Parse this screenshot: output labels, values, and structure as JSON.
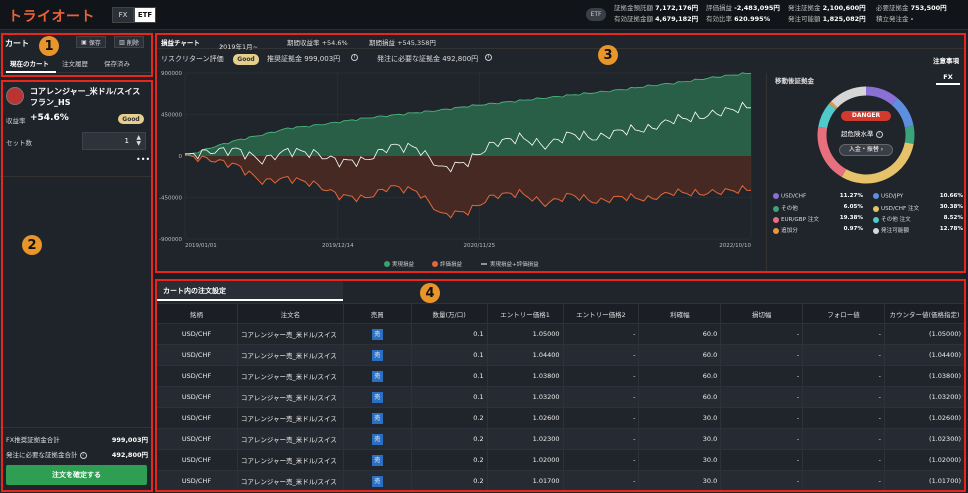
{
  "header": {
    "logo": "トライオート",
    "seg_fx": "FX",
    "seg_etf": "ETF",
    "badge": "ETF",
    "account": [
      {
        "label": "証拠金預託額",
        "value": "7,172,176円"
      },
      {
        "label": "評価損益",
        "value": "-2,483,095円"
      },
      {
        "label": "発注証拠金",
        "value": "2,100,600円"
      },
      {
        "label": "必要証拠金",
        "value": "753,500円"
      },
      {
        "label": "有効証拠金額",
        "value": "4,679,182円"
      },
      {
        "label": "有効比率",
        "value": "620.995%"
      },
      {
        "label": "発注可能額",
        "value": "1,825,082円"
      },
      {
        "label": "積立発注金",
        "value": "-"
      }
    ]
  },
  "left": {
    "title": "カート",
    "save": "保存",
    "delete": "削除",
    "tabs": [
      "現在のカート",
      "注文履歴",
      "保存済み"
    ],
    "strategy_name": "コアレンジャー_米ドル/スイスフラン_HS",
    "return_label": "収益率",
    "return_value": "+54.6%",
    "good": "Good",
    "set_label": "セット数",
    "set_value": "1",
    "fx_margin_label": "FX推奨証拠金合計",
    "fx_margin_value": "999,003円",
    "order_margin_label": "発注に必要な証拠金合計",
    "order_margin_value": "492,800円",
    "confirm": "注文を確定する"
  },
  "chart_panel": {
    "head_title": "損益チャート",
    "period": "2019年1月~",
    "period_return": "期間収益率 +54.6%",
    "period_pl": "期間損益 +545,358円",
    "risk_label": "リスクリターン評価",
    "good": "Good",
    "rec_margin": "推奨証拠金 999,003円",
    "order_margin": "発注に必要な証拠金 492,800円",
    "notes": "注意事項",
    "right_title": "移動後証拠金",
    "right_tab": "FX",
    "danger": "DANGER",
    "over_risk": "超危険水準",
    "deposit_btn": "入金・振替",
    "allocations": [
      {
        "label": "USD/CHF",
        "pct": "11.27%",
        "color": "#8a6fd4"
      },
      {
        "label": "USD/JPY",
        "pct": "10.66%",
        "color": "#5e8ee0"
      },
      {
        "label": "その他",
        "pct": "6.05%",
        "color": "#3aa37a"
      },
      {
        "label": "USD/CHF 注文",
        "pct": "30.38%",
        "color": "#e6c36a"
      },
      {
        "label": "EUR/GBP 注文",
        "pct": "19.38%",
        "color": "#e86f7d"
      },
      {
        "label": "その他 注文",
        "pct": "8.52%",
        "color": "#4fc9c9"
      },
      {
        "label": "追加分",
        "pct": "0.97%",
        "color": "#e8963a"
      },
      {
        "label": "発注可能額",
        "pct": "12.78%",
        "color": "#d6d6d6"
      }
    ]
  },
  "chart_data": {
    "type": "area",
    "x_tick_labels": [
      "2019/01/01",
      "2019/12/14",
      "2020/11/25",
      "2022/10/10"
    ],
    "y_tick_labels": [
      "900000",
      "450000",
      "0",
      "-450000",
      "-900000"
    ],
    "ylim": [
      -900000,
      900000
    ],
    "legend": [
      "実現損益",
      "評価損益",
      "実現損益+評価損益"
    ],
    "series": [
      {
        "name": "実現損益",
        "color": "#2f7a55",
        "values": [
          0,
          90000,
          170000,
          230000,
          300000,
          330000,
          370000,
          410000,
          440000,
          470000,
          500000,
          540000,
          570000,
          600000,
          630000,
          660000,
          690000,
          720000,
          760000,
          790000,
          830000,
          870000,
          900000
        ]
      },
      {
        "name": "評価損益",
        "color": "#e2673a",
        "values": [
          0,
          -40000,
          -100000,
          -280000,
          -240000,
          -300000,
          -430000,
          -460000,
          -330000,
          -380000,
          -640000,
          -600000,
          -430000,
          -400000,
          -520000,
          -420000,
          -500000,
          -440000,
          -470000,
          -390000,
          -410000,
          -380000,
          -360000
        ]
      },
      {
        "name": "実現損益+評価損益",
        "color": "#ffffff",
        "values": [
          0,
          50000,
          70000,
          -50000,
          60000,
          30000,
          -60000,
          -50000,
          110000,
          90000,
          -140000,
          -60000,
          140000,
          200000,
          110000,
          240000,
          190000,
          280000,
          290000,
          400000,
          420000,
          490000,
          540000
        ]
      }
    ]
  },
  "table": {
    "tab": "カート内の注文設定",
    "headers": [
      "銘柄",
      "注文名",
      "売買",
      "数量(万/口)",
      "エントリー価格1",
      "エントリー価格2",
      "利確幅",
      "損切幅",
      "フォロー値",
      "カウンター値(価格指定)"
    ],
    "rows": [
      {
        "pair": "USD/CHF",
        "name": "コアレンジャー売_米ドル/スイス",
        "side": "売",
        "qty": "0.1",
        "entry1": "1.05000",
        "entry2": "-",
        "tp": "60.0",
        "sl": "-",
        "follow": "-",
        "counter": "(1.05000)"
      },
      {
        "pair": "USD/CHF",
        "name": "コアレンジャー売_米ドル/スイス",
        "side": "売",
        "qty": "0.1",
        "entry1": "1.04400",
        "entry2": "-",
        "tp": "60.0",
        "sl": "-",
        "follow": "-",
        "counter": "(1.04400)"
      },
      {
        "pair": "USD/CHF",
        "name": "コアレンジャー売_米ドル/スイス",
        "side": "売",
        "qty": "0.1",
        "entry1": "1.03800",
        "entry2": "-",
        "tp": "60.0",
        "sl": "-",
        "follow": "-",
        "counter": "(1.03800)"
      },
      {
        "pair": "USD/CHF",
        "name": "コアレンジャー売_米ドル/スイス",
        "side": "売",
        "qty": "0.1",
        "entry1": "1.03200",
        "entry2": "-",
        "tp": "60.0",
        "sl": "-",
        "follow": "-",
        "counter": "(1.03200)"
      },
      {
        "pair": "USD/CHF",
        "name": "コアレンジャー売_米ドル/スイス",
        "side": "売",
        "qty": "0.2",
        "entry1": "1.02600",
        "entry2": "-",
        "tp": "30.0",
        "sl": "-",
        "follow": "-",
        "counter": "(1.02600)"
      },
      {
        "pair": "USD/CHF",
        "name": "コアレンジャー売_米ドル/スイス",
        "side": "売",
        "qty": "0.2",
        "entry1": "1.02300",
        "entry2": "-",
        "tp": "30.0",
        "sl": "-",
        "follow": "-",
        "counter": "(1.02300)"
      },
      {
        "pair": "USD/CHF",
        "name": "コアレンジャー売_米ドル/スイス",
        "side": "売",
        "qty": "0.2",
        "entry1": "1.02000",
        "entry2": "-",
        "tp": "30.0",
        "sl": "-",
        "follow": "-",
        "counter": "(1.02000)"
      },
      {
        "pair": "USD/CHF",
        "name": "コアレンジャー売_米ドル/スイス",
        "side": "売",
        "qty": "0.2",
        "entry1": "1.01700",
        "entry2": "-",
        "tp": "30.0",
        "sl": "-",
        "follow": "-",
        "counter": "(1.01700)"
      }
    ]
  },
  "annotations": [
    "1",
    "2",
    "3",
    "4"
  ]
}
